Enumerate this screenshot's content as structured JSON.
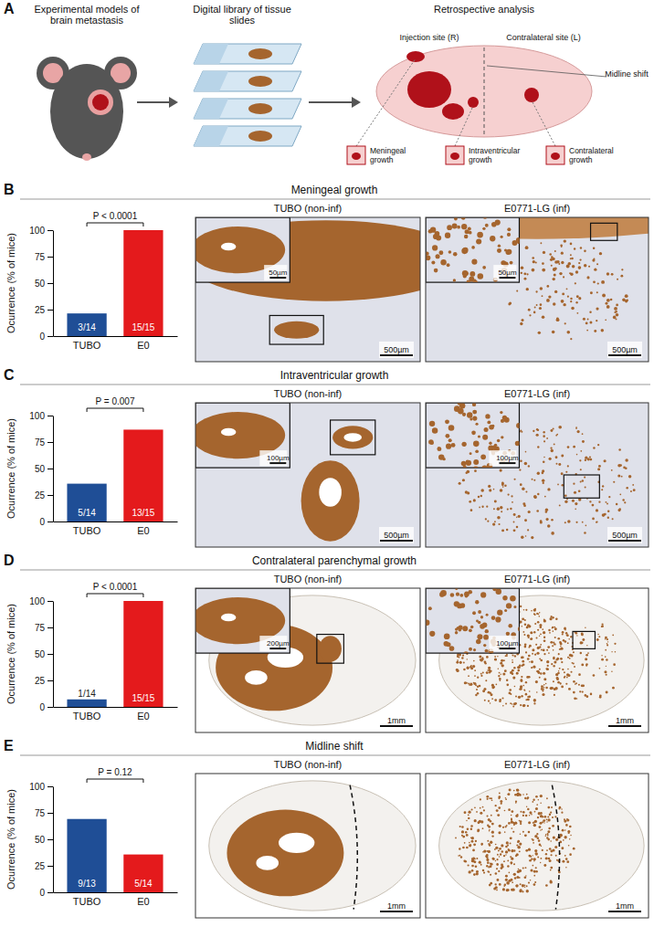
{
  "panel_letters": [
    "A",
    "B",
    "C",
    "D",
    "E"
  ],
  "schematic": {
    "steps": [
      "Experimental models of brain metastasis",
      "Digital library of tissue slides",
      "Retrospective analysis"
    ],
    "brain_labels": {
      "injection_site": "Injection site (R)",
      "contralateral_site": "Contralateral site (L)",
      "midline_shift": "Midline shift",
      "meningeal": "Meningeal growth",
      "intraventricular": "Intraventricular growth",
      "contralateral_growth": "Contralateral growth"
    }
  },
  "chart_data": [
    {
      "type": "bar",
      "title": "Meningeal growth",
      "categories": [
        "TUBO",
        "E0"
      ],
      "values": [
        21.4,
        100
      ],
      "value_labels": [
        "3/14",
        "15/15"
      ],
      "data_labels": true,
      "colors": [
        "#1f4e96",
        "#e41a1c"
      ],
      "ylim": [
        0,
        100
      ],
      "yticks": [
        0,
        25,
        50,
        75,
        100
      ],
      "y_label": "Ocurrence (% of mice)",
      "annotations": [
        "P < 0.0001"
      ]
    },
    {
      "type": "bar",
      "title": "Intraventricular growth",
      "categories": [
        "TUBO",
        "E0"
      ],
      "values": [
        35.7,
        86.7
      ],
      "value_labels": [
        "5/14",
        "13/15"
      ],
      "data_labels": true,
      "colors": [
        "#1f4e96",
        "#e41a1c"
      ],
      "ylim": [
        0,
        100
      ],
      "yticks": [
        0,
        25,
        50,
        75,
        100
      ],
      "y_label": "Ocurrence (% of mice)",
      "annotations": [
        "P = 0.007"
      ]
    },
    {
      "type": "bar",
      "title": "Contralateral parenchymal growth",
      "categories": [
        "TUBO",
        "E0"
      ],
      "values": [
        7.1,
        100
      ],
      "value_labels": [
        "1/14",
        "15/15"
      ],
      "data_labels": true,
      "colors": [
        "#1f4e96",
        "#e41a1c"
      ],
      "ylim": [
        0,
        100
      ],
      "yticks": [
        0,
        25,
        50,
        75,
        100
      ],
      "y_label": "Ocurrence (% of mice)",
      "annotations": [
        "P < 0.0001"
      ]
    },
    {
      "type": "bar",
      "title": "Midline shift",
      "categories": [
        "TUBO",
        "E0"
      ],
      "values": [
        69.2,
        35.7
      ],
      "value_labels": [
        "9/13",
        "5/14"
      ],
      "data_labels": true,
      "colors": [
        "#1f4e96",
        "#e41a1c"
      ],
      "ylim": [
        0,
        100
      ],
      "yticks": [
        0,
        25,
        50,
        75,
        100
      ],
      "y_label": "Ocurrence (% of mice)",
      "annotations": [
        "P = 0.12"
      ]
    }
  ],
  "micrographs": [
    [
      {
        "title": "TUBO (non-inf)",
        "scale_bar": "500µm",
        "inset_scale_bar": "50µm"
      },
      {
        "title": "E0771-LG (inf)",
        "scale_bar": "500µm",
        "inset_scale_bar": "50µm"
      }
    ],
    [
      {
        "title": "TUBO (non-inf)",
        "scale_bar": "500µm",
        "inset_scale_bar": "100µm"
      },
      {
        "title": "E0771-LG (inf)",
        "scale_bar": "500µm",
        "inset_scale_bar": "100µm"
      }
    ],
    [
      {
        "title": "TUBO (non-inf)",
        "scale_bar": "1mm",
        "inset_scale_bar": "200µm"
      },
      {
        "title": "E0771-LG (inf)",
        "scale_bar": "1mm",
        "inset_scale_bar": "100µm"
      }
    ],
    [
      {
        "title": "TUBO (non-inf)",
        "scale_bar": "1mm"
      },
      {
        "title": "E0771-LG (inf)",
        "scale_bar": "1mm"
      }
    ]
  ]
}
